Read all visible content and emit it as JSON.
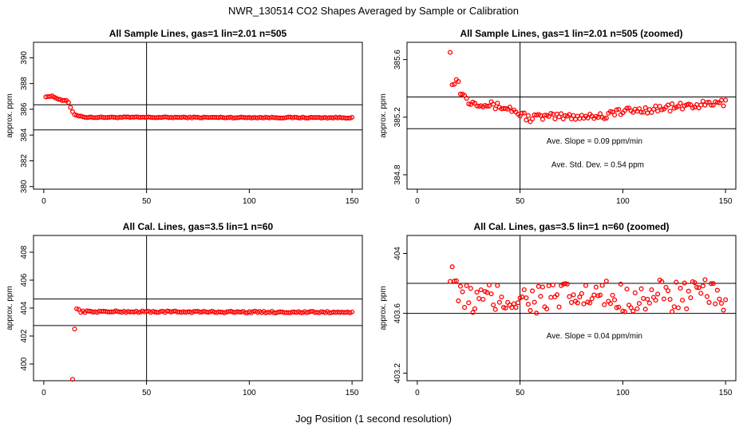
{
  "page": {
    "title": "NWR_130514  CO2 Shapes Averaged by Sample or Calibration",
    "xlabel": "Jog Position (1 second resolution)"
  },
  "chart_data": [
    {
      "id": "p1",
      "type": "scatter",
      "title": "All Sample Lines, gas=1 lin=2.01 n=505",
      "ylabel": "approx. ppm",
      "xlim": [
        -5,
        155
      ],
      "ylim": [
        379.8,
        391.2
      ],
      "xticks": [
        0,
        50,
        100,
        150
      ],
      "yticks": [
        380,
        382,
        384,
        386,
        388,
        390
      ],
      "hlines": [
        386.35,
        384.4
      ],
      "vline": 50,
      "annotations": [],
      "series": [
        {
          "segments": [
            {
              "x0": 1,
              "x1": 4,
              "y0": 387.0,
              "y1": 387.0
            },
            {
              "x0": 5,
              "x1": 8,
              "y0": 386.95,
              "y1": 386.75
            },
            {
              "x0": 9,
              "x1": 11,
              "y0": 386.7,
              "y1": 386.7
            },
            {
              "x0": 12,
              "x1": 14,
              "y0": 386.5,
              "y1": 385.8
            },
            {
              "x0": 15,
              "x1": 19,
              "y0": 385.55,
              "y1": 385.45
            },
            {
              "x0": 20,
              "x1": 150,
              "y0": 385.38,
              "y1": 385.35
            }
          ],
          "noise": 0.04
        }
      ]
    },
    {
      "id": "p2",
      "type": "scatter",
      "title": "All Sample Lines, gas=1 lin=2.01 n=505 (zoomed)",
      "ylabel": "approx. ppm",
      "xlim": [
        -5,
        155
      ],
      "ylim": [
        384.7,
        385.72
      ],
      "xticks": [
        0,
        50,
        100,
        150
      ],
      "yticks": [
        384.8,
        385.2,
        385.6
      ],
      "hlines": [
        385.34,
        385.12
      ],
      "vline": 50,
      "annotations": [
        "Ave. Slope =  0.09  ppm/min",
        "Ave. Std. Dev. =  0.54  ppm"
      ],
      "series": [
        {
          "segments": [
            {
              "x0": 16,
              "x1": 16,
              "y0": 385.65,
              "y1": 385.65
            },
            {
              "x0": 17,
              "x1": 20,
              "y0": 385.45,
              "y1": 385.45
            },
            {
              "x0": 21,
              "x1": 25,
              "y0": 385.38,
              "y1": 385.31
            },
            {
              "x0": 26,
              "x1": 45,
              "y0": 385.31,
              "y1": 385.26
            },
            {
              "x0": 46,
              "x1": 55,
              "y0": 385.25,
              "y1": 385.19
            },
            {
              "x0": 56,
              "x1": 92,
              "y0": 385.2,
              "y1": 385.21
            },
            {
              "x0": 93,
              "x1": 150,
              "y0": 385.23,
              "y1": 385.3
            }
          ],
          "noise": 0.025
        }
      ]
    },
    {
      "id": "p3",
      "type": "scatter",
      "title": "All Cal. Lines, gas=3.5 lin=1 n=60",
      "ylabel": "approx. ppm",
      "xlim": [
        -5,
        155
      ],
      "ylim": [
        398.8,
        409.2
      ],
      "xticks": [
        0,
        50,
        100,
        150
      ],
      "yticks": [
        400,
        402,
        404,
        406,
        408
      ],
      "hlines": [
        404.65,
        402.75
      ],
      "vline": 50,
      "annotations": [],
      "series": [
        {
          "segments": [
            {
              "x0": 14,
              "x1": 14,
              "y0": 398.9,
              "y1": 398.9
            },
            {
              "x0": 15,
              "x1": 15,
              "y0": 402.5,
              "y1": 402.5
            },
            {
              "x0": 16,
              "x1": 17,
              "y0": 403.95,
              "y1": 403.9
            },
            {
              "x0": 18,
              "x1": 150,
              "y0": 403.75,
              "y1": 403.7
            }
          ],
          "noise": 0.06
        }
      ]
    },
    {
      "id": "p4",
      "type": "scatter",
      "title": "All Cal. Lines, gas=3.5 lin=1 n=60 (zoomed)",
      "ylabel": "approx. ppm",
      "xlim": [
        -5,
        155
      ],
      "ylim": [
        403.15,
        404.12
      ],
      "xticks": [
        0,
        50,
        100,
        150
      ],
      "yticks": [
        403.2,
        403.6,
        404.0
      ],
      "hlines": [
        403.8,
        403.6
      ],
      "vline": 50,
      "annotations": [
        "Ave. Slope =  0.04  ppm/min"
      ],
      "series": [
        {
          "segments": [
            {
              "x0": 16,
              "x1": 19,
              "y0": 403.92,
              "y1": 403.83
            },
            {
              "x0": 20,
              "x1": 150,
              "y0": 403.69,
              "y1": 403.72
            }
          ],
          "noise": 0.11
        }
      ]
    }
  ]
}
